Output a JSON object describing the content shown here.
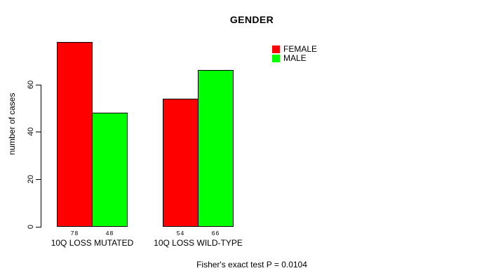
{
  "chart_data": {
    "type": "bar",
    "title": "GENDER",
    "categories": [
      "10Q LOSS MUTATED",
      "10Q LOSS WILD-TYPE"
    ],
    "series": [
      {
        "name": "FEMALE",
        "color": "#ff0000",
        "values": [
          78,
          54
        ]
      },
      {
        "name": "MALE",
        "color": "#00ff00",
        "values": [
          48,
          66
        ]
      }
    ],
    "bar_value_labels": [
      [
        "78",
        "54"
      ],
      [
        "48",
        "66"
      ]
    ],
    "xlabel": "",
    "ylabel": "number of cases",
    "ytick_values": [
      0,
      20,
      40,
      60
    ],
    "ytick_labels": [
      "0",
      "20",
      "40",
      "60"
    ],
    "ylim": [
      0,
      80
    ],
    "grid": false,
    "legend_position": "top-right",
    "bar_border_color": "#000000",
    "text_color": "#000000",
    "background_color": "#ffffff",
    "footnote": "Fisher's exact test P = 0.0104"
  }
}
